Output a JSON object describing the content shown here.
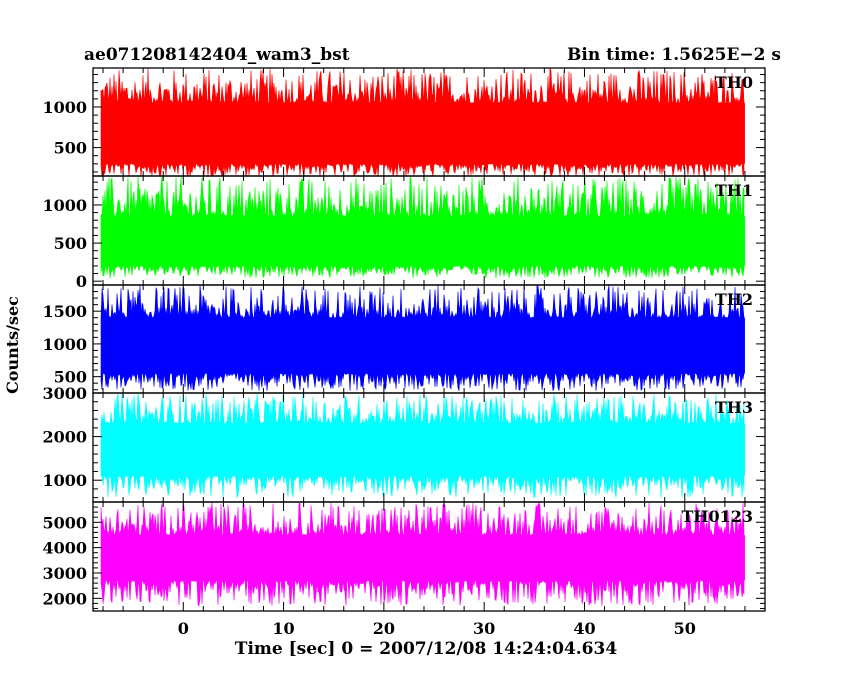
{
  "chart_data": {
    "type": "line",
    "title_left": "ae071208142404_wam3_bst",
    "title_right": "Bin time: 1.5625E−2 s",
    "xlabel": "Time [sec] 0 = 2007/12/08 14:24:04.634",
    "ylabel": "Counts/sec",
    "xlim": [
      -9,
      58
    ],
    "x_ticks": [
      0,
      10,
      20,
      30,
      40,
      50
    ],
    "x_data_range": [
      -8.2,
      56
    ],
    "grid": false,
    "panels": [
      {
        "name": "TH0",
        "color": "#ff0000",
        "ylim": [
          150,
          1480
        ],
        "y_ticks": [
          500,
          1000
        ],
        "base_min": 300,
        "base_max": 1050,
        "low": 130,
        "high": 1480
      },
      {
        "name": "TH1",
        "color": "#00ff00",
        "ylim": [
          -50,
          1380
        ],
        "y_ticks": [
          0,
          500,
          1000
        ],
        "base_min": 200,
        "base_max": 850,
        "low": 40,
        "high": 1380
      },
      {
        "name": "TH2",
        "color": "#0000ff",
        "ylim": [
          250,
          1900
        ],
        "y_ticks": [
          500,
          1000,
          1500
        ],
        "base_min": 550,
        "base_max": 1400,
        "low": 280,
        "high": 1900
      },
      {
        "name": "TH3",
        "color": "#00ffff",
        "ylim": [
          500,
          3000
        ],
        "y_ticks": [
          1000,
          2000,
          3000
        ],
        "base_min": 1100,
        "base_max": 2300,
        "low": 600,
        "high": 3000
      },
      {
        "name": "TH0123",
        "color": "#ff00ff",
        "ylim": [
          1500,
          5800
        ],
        "y_ticks": [
          2000,
          3000,
          4000,
          5000
        ],
        "base_min": 2700,
        "base_max": 4500,
        "low": 1700,
        "high": 5800
      }
    ]
  }
}
